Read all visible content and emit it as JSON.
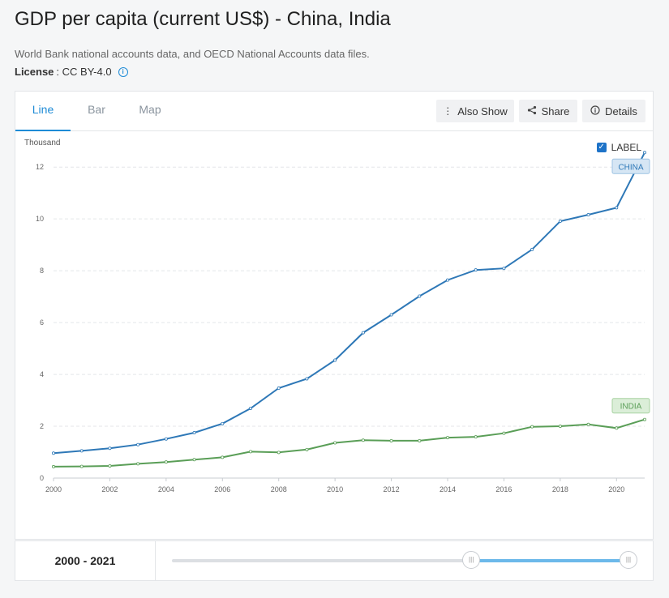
{
  "page": {
    "title": "GDP per capita (current US$) - China, India",
    "source": "World Bank national accounts data, and OECD National Accounts data files.",
    "license_label": "License",
    "license_value": ": CC BY-4.0"
  },
  "tabs": [
    {
      "label": "Line",
      "active": true
    },
    {
      "label": "Bar",
      "active": false
    },
    {
      "label": "Map",
      "active": false
    }
  ],
  "toolbar": {
    "also_show": "Also Show",
    "share": "Share",
    "details": "Details"
  },
  "label_toggle": {
    "text": "LABEL",
    "checked": true
  },
  "colors": {
    "accent": "#1e8bd6",
    "china": "#2e78b7",
    "india": "#5a9e57"
  },
  "range": {
    "label": "2000 - 2021",
    "start": 2000,
    "end": 2021,
    "min_year": 1960,
    "max_year": 2021
  },
  "chart_data": {
    "type": "line",
    "ylabel": "Thousand",
    "ylim": [
      0,
      12.6
    ],
    "yticks": [
      0,
      2,
      4,
      6,
      8,
      10,
      12
    ],
    "xticks": [
      2000,
      2002,
      2004,
      2006,
      2008,
      2010,
      2012,
      2014,
      2016,
      2018,
      2020
    ],
    "x": [
      2000,
      2001,
      2002,
      2003,
      2004,
      2005,
      2006,
      2007,
      2008,
      2009,
      2010,
      2011,
      2012,
      2013,
      2014,
      2015,
      2016,
      2017,
      2018,
      2019,
      2020,
      2021
    ],
    "grid": true,
    "series": [
      {
        "name": "CHINA",
        "color": "#2e78b7",
        "values": [
          0.96,
          1.05,
          1.15,
          1.29,
          1.51,
          1.75,
          2.1,
          2.69,
          3.47,
          3.83,
          4.55,
          5.61,
          6.3,
          7.02,
          7.64,
          8.03,
          8.09,
          8.82,
          9.91,
          10.16,
          10.43,
          12.56
        ]
      },
      {
        "name": "INDIA",
        "color": "#5a9e57",
        "values": [
          0.44,
          0.45,
          0.47,
          0.55,
          0.62,
          0.71,
          0.8,
          1.02,
          0.99,
          1.1,
          1.36,
          1.46,
          1.44,
          1.44,
          1.56,
          1.59,
          1.73,
          1.98,
          2.0,
          2.07,
          1.93,
          2.26
        ]
      }
    ]
  }
}
